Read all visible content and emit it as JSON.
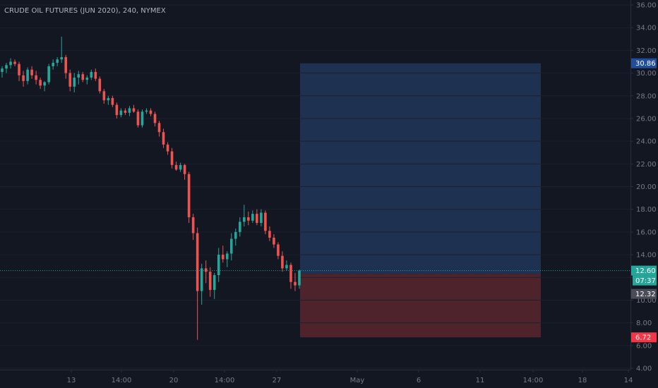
{
  "header": {
    "title": "CRUDE OIL FUTURES (JUN 2020), 240, NYMEX"
  },
  "colors": {
    "background": "#131722",
    "up": "#26a69a",
    "down": "#ef5350",
    "target_zone": "#1f3150",
    "stop_zone": "#4e232b",
    "target_label": "#1e4e9c",
    "stop_label": "#f23645",
    "price_label": "#26a69a",
    "countdown_label": "#26a69a",
    "entry_label": "#4a4d57",
    "axis_text": "#787b86"
  },
  "chart_data": {
    "type": "candlestick",
    "title": "CRUDE OIL FUTURES (JUN 2020), 240, NYMEX",
    "ylim": [
      4.0,
      36.0
    ],
    "y_ticks": [
      "36.00",
      "34.00",
      "32.00",
      "30.00",
      "28.00",
      "26.00",
      "24.00",
      "22.00",
      "20.00",
      "18.00",
      "16.00",
      "14.00",
      "12.00",
      "10.00",
      "8.00",
      "6.00",
      "4.00"
    ],
    "x_ticks": [
      "13",
      "14:00",
      "20",
      "14:00",
      "27",
      "May",
      "6",
      "11",
      "14:00",
      "18",
      "14"
    ],
    "candles": [
      [
        30.1,
        30.6,
        29.6,
        30.4
      ],
      [
        30.4,
        30.9,
        30.0,
        30.7
      ],
      [
        30.7,
        31.3,
        30.4,
        31.0
      ],
      [
        31.0,
        31.2,
        30.6,
        30.8
      ],
      [
        30.8,
        31.0,
        29.3,
        29.8
      ],
      [
        29.8,
        30.2,
        28.8,
        29.3
      ],
      [
        29.3,
        30.5,
        29.0,
        30.3
      ],
      [
        30.3,
        30.6,
        29.5,
        29.8
      ],
      [
        29.8,
        30.2,
        29.0,
        29.4
      ],
      [
        29.4,
        29.6,
        28.6,
        28.9
      ],
      [
        28.9,
        29.3,
        28.4,
        29.2
      ],
      [
        29.2,
        30.8,
        29.0,
        30.6
      ],
      [
        30.6,
        31.2,
        30.3,
        30.9
      ],
      [
        30.9,
        31.4,
        30.6,
        31.2
      ],
      [
        31.2,
        33.2,
        30.9,
        31.4
      ],
      [
        31.4,
        31.6,
        29.5,
        30.0
      ],
      [
        30.0,
        30.3,
        28.4,
        28.8
      ],
      [
        28.8,
        30.0,
        28.3,
        29.6
      ],
      [
        29.6,
        30.2,
        29.0,
        29.9
      ],
      [
        29.9,
        30.1,
        29.2,
        29.4
      ],
      [
        29.4,
        29.8,
        29.0,
        29.6
      ],
      [
        29.6,
        30.3,
        29.4,
        30.1
      ],
      [
        30.1,
        30.4,
        29.3,
        29.5
      ],
      [
        29.5,
        29.7,
        28.2,
        28.4
      ],
      [
        28.4,
        28.6,
        27.3,
        27.6
      ],
      [
        27.6,
        28.0,
        27.2,
        27.8
      ],
      [
        27.8,
        28.0,
        27.0,
        27.2
      ],
      [
        27.2,
        27.4,
        26.0,
        26.3
      ],
      [
        26.3,
        26.9,
        26.1,
        26.7
      ],
      [
        26.7,
        26.9,
        26.3,
        26.5
      ],
      [
        26.5,
        27.1,
        26.2,
        26.9
      ],
      [
        26.9,
        27.2,
        26.5,
        26.6
      ],
      [
        26.6,
        26.8,
        25.2,
        25.4
      ],
      [
        25.4,
        26.8,
        25.2,
        26.6
      ],
      [
        26.6,
        26.9,
        26.4,
        26.7
      ],
      [
        26.7,
        26.9,
        26.2,
        26.4
      ],
      [
        26.4,
        26.6,
        25.3,
        25.6
      ],
      [
        25.6,
        25.8,
        24.4,
        24.8
      ],
      [
        24.8,
        25.1,
        23.4,
        23.7
      ],
      [
        23.7,
        23.9,
        22.8,
        23.1
      ],
      [
        23.1,
        23.4,
        21.6,
        21.9
      ],
      [
        21.9,
        22.2,
        21.4,
        21.5
      ],
      [
        21.5,
        22.1,
        21.3,
        21.9
      ],
      [
        21.9,
        22.0,
        20.6,
        21.1
      ],
      [
        21.1,
        21.3,
        16.8,
        17.3
      ],
      [
        17.3,
        17.6,
        15.3,
        15.9
      ],
      [
        15.9,
        16.4,
        6.5,
        10.8
      ],
      [
        10.8,
        13.2,
        9.6,
        12.8
      ],
      [
        12.8,
        13.5,
        11.5,
        12.5
      ],
      [
        12.5,
        12.9,
        10.3,
        10.9
      ],
      [
        10.9,
        12.4,
        10.1,
        12.2
      ],
      [
        12.2,
        14.6,
        11.6,
        14.0
      ],
      [
        14.0,
        14.8,
        13.3,
        13.6
      ],
      [
        13.6,
        14.3,
        12.9,
        14.1
      ],
      [
        14.1,
        15.9,
        13.5,
        15.4
      ],
      [
        15.4,
        16.3,
        14.8,
        16.0
      ],
      [
        16.0,
        17.3,
        15.6,
        16.9
      ],
      [
        16.9,
        18.4,
        16.5,
        17.3
      ],
      [
        17.3,
        17.8,
        16.6,
        17.0
      ],
      [
        17.0,
        17.9,
        16.8,
        17.6
      ],
      [
        17.6,
        18.0,
        16.6,
        16.8
      ],
      [
        16.8,
        18.0,
        16.5,
        17.7
      ],
      [
        17.7,
        17.9,
        15.8,
        16.1
      ],
      [
        16.1,
        16.5,
        15.2,
        15.5
      ],
      [
        15.5,
        15.8,
        14.6,
        14.9
      ],
      [
        14.9,
        15.1,
        13.6,
        13.9
      ],
      [
        13.9,
        14.3,
        12.5,
        12.8
      ],
      [
        12.8,
        13.5,
        12.6,
        13.1
      ],
      [
        13.1,
        13.3,
        11.0,
        11.6
      ],
      [
        11.6,
        12.4,
        10.8,
        11.3
      ],
      [
        11.3,
        12.7,
        11.0,
        12.6
      ]
    ],
    "last_price": 12.6,
    "countdown": "07:37",
    "position": {
      "target": 30.86,
      "entry": 12.32,
      "stop": 6.72
    },
    "price_labels": {
      "target": "30.86",
      "last": "12.60",
      "countdown": "07:37",
      "entry": "12.32",
      "stop": "6.72"
    }
  }
}
